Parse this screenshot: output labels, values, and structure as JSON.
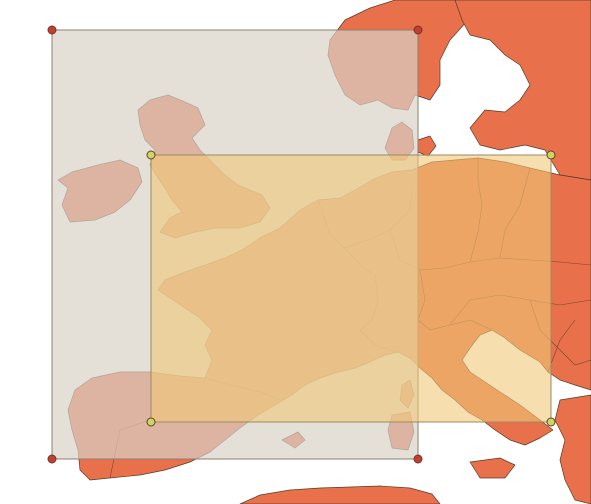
{
  "map": {
    "background_color": "#ffffff",
    "land_color": "#e8704a",
    "border_color": "#5a3a28"
  },
  "overlays": [
    {
      "name": "gray-extent",
      "fill_color": "#d8d2c6",
      "fill_opacity": 0.7,
      "vertex_color": "#c63c2e"
    },
    {
      "name": "yellow-extent",
      "fill_color": "#f0c878",
      "fill_opacity": 0.6,
      "vertex_color": "#c8d860"
    }
  ]
}
